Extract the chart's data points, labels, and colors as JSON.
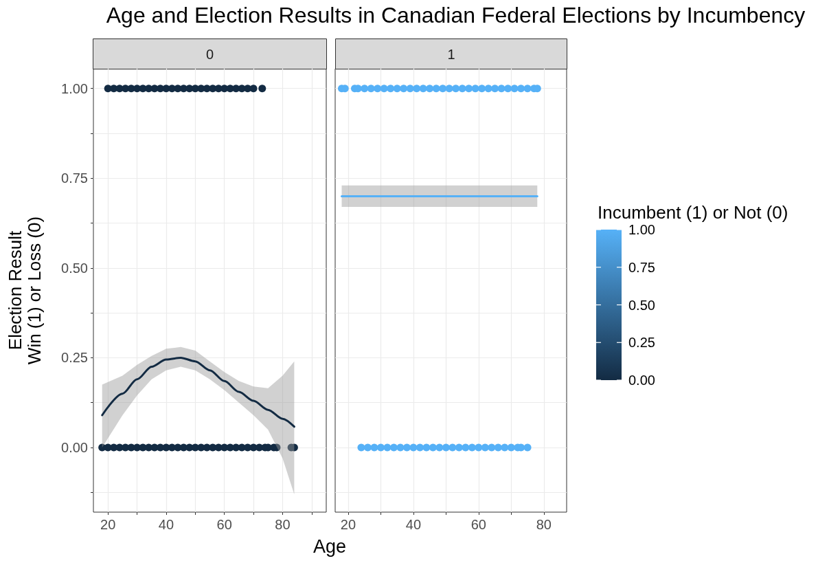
{
  "chart_data": [
    {
      "type": "scatter",
      "title": "Age and Election Results in Canadian Federal Elections by Incumbency",
      "subtitle": "0",
      "xlabel": "Age",
      "ylabel": "Election Result\nWin (1) or Loss (0)",
      "xlim": [
        15,
        95
      ],
      "xticks": [
        20,
        {
          "value": 30,
          "label": null
        },
        40,
        {
          "value": 50,
          "label": null
        },
        60,
        {
          "value": 70,
          "label": null
        },
        80,
        {
          "value": 90,
          "label": null
        }
      ],
      "ylim": [
        -0.18,
        1.055
      ],
      "yticks": [
        {
          "value": -0.125,
          "label": null
        },
        {
          "value": 0,
          "label": "0.00"
        },
        {
          "value": 0.125,
          "label": null
        },
        {
          "value": 0.25,
          "label": "0.25"
        },
        {
          "value": 0.375,
          "label": null
        },
        {
          "value": 0.5,
          "label": "0.50"
        },
        {
          "value": 0.625,
          "label": null
        },
        {
          "value": 0.75,
          "label": "0.75"
        },
        {
          "value": 0.875,
          "label": null
        },
        {
          "value": 1,
          "label": "1.00"
        }
      ],
      "grid": true,
      "series": [
        {
          "color": "#132b43",
          "x": [
            20,
            22,
            24,
            26,
            28,
            30,
            32,
            34,
            36,
            38,
            40,
            42,
            44,
            46,
            48,
            50,
            52,
            54,
            56,
            58,
            60,
            62,
            64,
            66,
            68,
            70,
            73
          ],
          "values": [
            1,
            1,
            1,
            1,
            1,
            1,
            1,
            1,
            1,
            1,
            1,
            1,
            1,
            1,
            1,
            1,
            1,
            1,
            1,
            1,
            1,
            1,
            1,
            1,
            1,
            1,
            1
          ]
        },
        {
          "color": "#132b43",
          "x": [
            18,
            20,
            22,
            24,
            26,
            28,
            30,
            32,
            34,
            36,
            38,
            40,
            42,
            44,
            46,
            48,
            50,
            52,
            54,
            56,
            58,
            60,
            62,
            64,
            66,
            68,
            70,
            72,
            74,
            75,
            77,
            78,
            83,
            84
          ],
          "values": [
            0,
            0,
            0,
            0,
            0,
            0,
            0,
            0,
            0,
            0,
            0,
            0,
            0,
            0,
            0,
            0,
            0,
            0,
            0,
            0,
            0,
            0,
            0,
            0,
            0,
            0,
            0,
            0,
            0,
            0,
            0,
            0,
            0,
            0
          ]
        },
        {
          "type": "line",
          "color": "#132b43",
          "x": [
            18,
            25,
            30,
            35,
            40,
            45,
            50,
            55,
            60,
            65,
            70,
            75,
            80,
            84
          ],
          "values": [
            0.09,
            0.15,
            0.19,
            0.225,
            0.245,
            0.25,
            0.24,
            0.215,
            0.185,
            0.155,
            0.13,
            0.105,
            0.08,
            0.058
          ],
          "lower": [
            0.0,
            0.09,
            0.145,
            0.19,
            0.215,
            0.225,
            0.215,
            0.19,
            0.16,
            0.125,
            0.09,
            0.05,
            -0.03,
            -0.13
          ],
          "upper": [
            0.175,
            0.2,
            0.23,
            0.255,
            0.275,
            0.28,
            0.27,
            0.24,
            0.21,
            0.185,
            0.17,
            0.165,
            0.2,
            0.24
          ]
        }
      ]
    },
    {
      "type": "scatter",
      "subtitle": "1",
      "xlim": [
        16,
        87
      ],
      "xticks": [
        20,
        {
          "value": 30,
          "label": null
        },
        40,
        {
          "value": 50,
          "label": null
        },
        60,
        {
          "value": 70,
          "label": null
        },
        80
      ],
      "ylim": [
        -0.18,
        1.055
      ],
      "yticks": [
        {
          "value": -0.125,
          "label": null
        },
        {
          "value": 0,
          "label": null
        },
        {
          "value": 0.125,
          "label": null
        },
        {
          "value": 0.25,
          "label": null
        },
        {
          "value": 0.375,
          "label": null
        },
        {
          "value": 0.5,
          "label": null
        },
        {
          "value": 0.625,
          "label": null
        },
        {
          "value": 0.75,
          "label": null
        },
        {
          "value": 0.875,
          "label": null
        },
        {
          "value": 1,
          "label": null
        }
      ],
      "tick_labels": "x",
      "grid": true,
      "clabel": "Incumbent (1) or Not (0)",
      "clim": [
        0,
        1
      ],
      "cticks": [
        {
          "value": 0,
          "label": "0.00"
        },
        {
          "value": 0.25,
          "label": "0.25"
        },
        {
          "value": 0.5,
          "label": "0.50"
        },
        {
          "value": 0.75,
          "label": "0.75"
        },
        {
          "value": 1,
          "label": "1.00"
        }
      ],
      "series": [
        {
          "x": [
            18,
            19,
            22,
            23,
            25,
            27,
            29,
            31,
            33,
            35,
            37,
            39,
            41,
            43,
            45,
            47,
            49,
            51,
            53,
            55,
            57,
            59,
            61,
            63,
            65,
            67,
            69,
            71,
            73,
            75,
            77,
            78
          ],
          "values": [
            1,
            1,
            1,
            1,
            1,
            1,
            1,
            1,
            1,
            1,
            1,
            1,
            1,
            1,
            1,
            1,
            1,
            1,
            1,
            1,
            1,
            1,
            1,
            1,
            1,
            1,
            1,
            1,
            1,
            1,
            1,
            1
          ],
          "cvalues": [
            1,
            1,
            1,
            1,
            1,
            1,
            1,
            1,
            1,
            1,
            1,
            1,
            1,
            1,
            1,
            1,
            1,
            1,
            1,
            1,
            1,
            1,
            1,
            1,
            1,
            1,
            1,
            1,
            1,
            1,
            1,
            1
          ]
        },
        {
          "x": [
            24,
            26,
            28,
            30,
            32,
            34,
            36,
            38,
            40,
            42,
            44,
            46,
            48,
            50,
            52,
            54,
            56,
            58,
            60,
            62,
            64,
            66,
            68,
            70,
            72,
            73,
            75
          ],
          "values": [
            0,
            0,
            0,
            0,
            0,
            0,
            0,
            0,
            0,
            0,
            0,
            0,
            0,
            0,
            0,
            0,
            0,
            0,
            0,
            0,
            0,
            0,
            0,
            0,
            0,
            0,
            0
          ],
          "cvalues": [
            1,
            1,
            1,
            1,
            1,
            1,
            1,
            1,
            1,
            1,
            1,
            1,
            1,
            1,
            1,
            1,
            1,
            1,
            1,
            1,
            1,
            1,
            1,
            1,
            1,
            1,
            1
          ]
        },
        {
          "type": "line",
          "color": "#56b1f7",
          "x": [
            18,
            78
          ],
          "values": [
            0.7,
            0.7
          ],
          "lower": [
            0.67,
            0.67
          ],
          "upper": [
            0.73,
            0.73
          ]
        }
      ]
    }
  ]
}
